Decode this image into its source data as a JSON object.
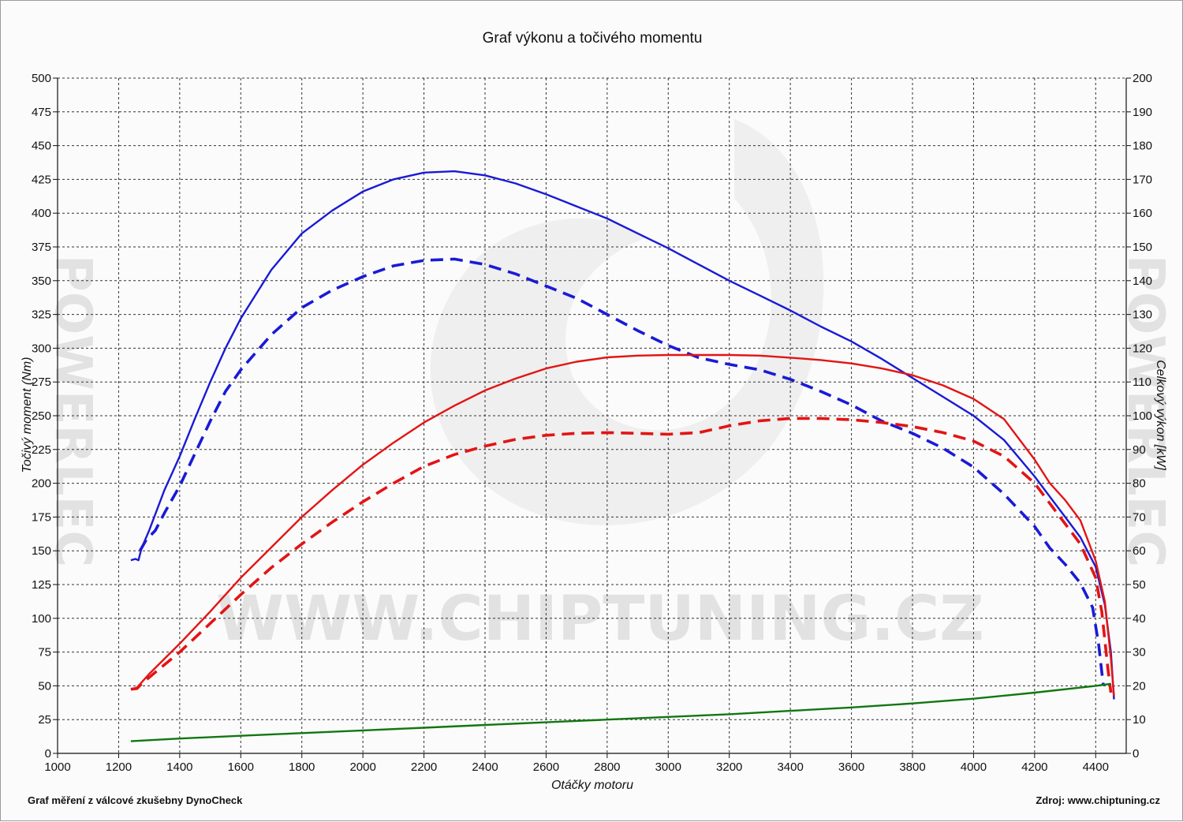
{
  "footer": {
    "left": "Graf měření z válcové zkušebny DynoCheck",
    "right": "Zdroj: www.chiptuning.cz"
  },
  "watermark": {
    "text": "WWW.CHIPTUNING.CZ",
    "side_text": "POWERLEC"
  },
  "chart_data": {
    "type": "line",
    "title": "Graf výkonu a točivého momentu",
    "xlabel": "Otáčky motoru",
    "ylabel": "Točivý moment (Nm)",
    "y2label": "Celkový výkon [kW]",
    "xlim": [
      1000,
      4500
    ],
    "ylim": [
      0,
      500
    ],
    "y2lim": [
      0,
      200
    ],
    "x_ticks": [
      1000,
      1200,
      1400,
      1600,
      1800,
      2000,
      2200,
      2400,
      2600,
      2800,
      3000,
      3200,
      3400,
      3600,
      3800,
      4000,
      4200,
      4400
    ],
    "y_ticks": [
      0,
      25,
      50,
      75,
      100,
      125,
      150,
      175,
      200,
      225,
      250,
      275,
      300,
      325,
      350,
      375,
      400,
      425,
      450,
      475,
      500
    ],
    "y2_ticks": [
      0,
      10,
      20,
      30,
      40,
      50,
      60,
      70,
      80,
      90,
      100,
      110,
      120,
      130,
      140,
      150,
      160,
      170,
      180,
      190,
      200
    ],
    "grid": true,
    "legend": "none",
    "series": [
      {
        "axis": "left",
        "color": "#1a1ad6",
        "dash": false,
        "points": [
          [
            1240,
            143
          ],
          [
            1255,
            144
          ],
          [
            1265,
            143
          ],
          [
            1275,
            152
          ],
          [
            1300,
            165
          ],
          [
            1350,
            195
          ],
          [
            1400,
            220
          ],
          [
            1450,
            248
          ],
          [
            1500,
            275
          ],
          [
            1550,
            300
          ],
          [
            1600,
            322
          ],
          [
            1700,
            358
          ],
          [
            1800,
            385
          ],
          [
            1900,
            402
          ],
          [
            2000,
            416
          ],
          [
            2100,
            425
          ],
          [
            2200,
            430
          ],
          [
            2300,
            431
          ],
          [
            2400,
            428
          ],
          [
            2500,
            422
          ],
          [
            2600,
            414
          ],
          [
            2700,
            405
          ],
          [
            2800,
            396
          ],
          [
            2900,
            385
          ],
          [
            3000,
            374
          ],
          [
            3100,
            362
          ],
          [
            3200,
            350
          ],
          [
            3300,
            339
          ],
          [
            3400,
            328
          ],
          [
            3500,
            316
          ],
          [
            3600,
            305
          ],
          [
            3700,
            292
          ],
          [
            3800,
            278
          ],
          [
            3900,
            264
          ],
          [
            4000,
            250
          ],
          [
            4100,
            232
          ],
          [
            4200,
            205
          ],
          [
            4250,
            190
          ],
          [
            4300,
            175
          ],
          [
            4350,
            160
          ],
          [
            4400,
            138
          ],
          [
            4430,
            110
          ],
          [
            4450,
            75
          ],
          [
            4460,
            40
          ]
        ]
      },
      {
        "axis": "left",
        "color": "#1a1ad6",
        "dash": true,
        "points": [
          [
            1270,
            150
          ],
          [
            1290,
            158
          ],
          [
            1320,
            165
          ],
          [
            1350,
            178
          ],
          [
            1400,
            198
          ],
          [
            1450,
            222
          ],
          [
            1500,
            246
          ],
          [
            1550,
            268
          ],
          [
            1600,
            284
          ],
          [
            1700,
            310
          ],
          [
            1800,
            330
          ],
          [
            1900,
            343
          ],
          [
            2000,
            353
          ],
          [
            2100,
            361
          ],
          [
            2200,
            365
          ],
          [
            2300,
            366
          ],
          [
            2400,
            362
          ],
          [
            2500,
            355
          ],
          [
            2600,
            346
          ],
          [
            2700,
            337
          ],
          [
            2800,
            325
          ],
          [
            2900,
            313
          ],
          [
            3000,
            302
          ],
          [
            3100,
            293
          ],
          [
            3200,
            288
          ],
          [
            3300,
            284
          ],
          [
            3400,
            277
          ],
          [
            3500,
            268
          ],
          [
            3600,
            258
          ],
          [
            3700,
            246
          ],
          [
            3800,
            237
          ],
          [
            3900,
            226
          ],
          [
            4000,
            212
          ],
          [
            4100,
            192
          ],
          [
            4200,
            168
          ],
          [
            4250,
            152
          ],
          [
            4300,
            140
          ],
          [
            4350,
            126
          ],
          [
            4390,
            108
          ],
          [
            4410,
            80
          ],
          [
            4425,
            50
          ]
        ]
      },
      {
        "axis": "right",
        "color": "#e31414",
        "dash": false,
        "points": [
          [
            1240,
            19
          ],
          [
            1260,
            19.5
          ],
          [
            1300,
            23.5
          ],
          [
            1400,
            32.5
          ],
          [
            1500,
            42
          ],
          [
            1600,
            52
          ],
          [
            1700,
            61
          ],
          [
            1800,
            70
          ],
          [
            1900,
            78
          ],
          [
            2000,
            85.5
          ],
          [
            2100,
            92
          ],
          [
            2200,
            98
          ],
          [
            2300,
            103
          ],
          [
            2400,
            107.5
          ],
          [
            2500,
            111
          ],
          [
            2600,
            114
          ],
          [
            2700,
            116
          ],
          [
            2800,
            117.3
          ],
          [
            2900,
            117.8
          ],
          [
            3000,
            118
          ],
          [
            3100,
            118
          ],
          [
            3200,
            118
          ],
          [
            3300,
            117.8
          ],
          [
            3400,
            117.2
          ],
          [
            3500,
            116.5
          ],
          [
            3600,
            115.5
          ],
          [
            3700,
            114
          ],
          [
            3800,
            112
          ],
          [
            3900,
            109
          ],
          [
            4000,
            105
          ],
          [
            4100,
            99
          ],
          [
            4200,
            87
          ],
          [
            4250,
            80
          ],
          [
            4300,
            75
          ],
          [
            4350,
            69
          ],
          [
            4400,
            57
          ],
          [
            4430,
            45
          ],
          [
            4450,
            28
          ],
          [
            4460,
            17
          ]
        ]
      },
      {
        "axis": "right",
        "color": "#e31414",
        "dash": true,
        "points": [
          [
            1240,
            19
          ],
          [
            1260,
            19.2
          ],
          [
            1280,
            21
          ],
          [
            1300,
            22.5
          ],
          [
            1400,
            30
          ],
          [
            1500,
            38.5
          ],
          [
            1600,
            47
          ],
          [
            1700,
            55
          ],
          [
            1800,
            62
          ],
          [
            1900,
            68.5
          ],
          [
            2000,
            74.5
          ],
          [
            2100,
            80
          ],
          [
            2200,
            85
          ],
          [
            2300,
            88.5
          ],
          [
            2400,
            91
          ],
          [
            2500,
            93
          ],
          [
            2600,
            94.2
          ],
          [
            2700,
            94.8
          ],
          [
            2800,
            95
          ],
          [
            2900,
            94.8
          ],
          [
            3000,
            94.5
          ],
          [
            3100,
            95
          ],
          [
            3200,
            97
          ],
          [
            3300,
            98.5
          ],
          [
            3400,
            99.2
          ],
          [
            3500,
            99.2
          ],
          [
            3600,
            98.8
          ],
          [
            3700,
            98
          ],
          [
            3800,
            96.8
          ],
          [
            3900,
            95
          ],
          [
            4000,
            92.5
          ],
          [
            4100,
            88
          ],
          [
            4200,
            80
          ],
          [
            4250,
            74
          ],
          [
            4300,
            68
          ],
          [
            4350,
            62
          ],
          [
            4400,
            52
          ],
          [
            4420,
            42
          ],
          [
            4440,
            25
          ],
          [
            4450,
            18
          ]
        ]
      },
      {
        "axis": "left",
        "color": "#117711",
        "dash": false,
        "points": [
          [
            1240,
            9
          ],
          [
            1400,
            11
          ],
          [
            1600,
            13
          ],
          [
            1800,
            15
          ],
          [
            2000,
            17
          ],
          [
            2200,
            19
          ],
          [
            2400,
            21
          ],
          [
            2600,
            23
          ],
          [
            2800,
            25
          ],
          [
            3000,
            27
          ],
          [
            3200,
            29
          ],
          [
            3400,
            31.5
          ],
          [
            3600,
            34
          ],
          [
            3800,
            37
          ],
          [
            4000,
            40.5
          ],
          [
            4200,
            45
          ],
          [
            4400,
            50
          ],
          [
            4450,
            51.5
          ]
        ]
      }
    ]
  }
}
